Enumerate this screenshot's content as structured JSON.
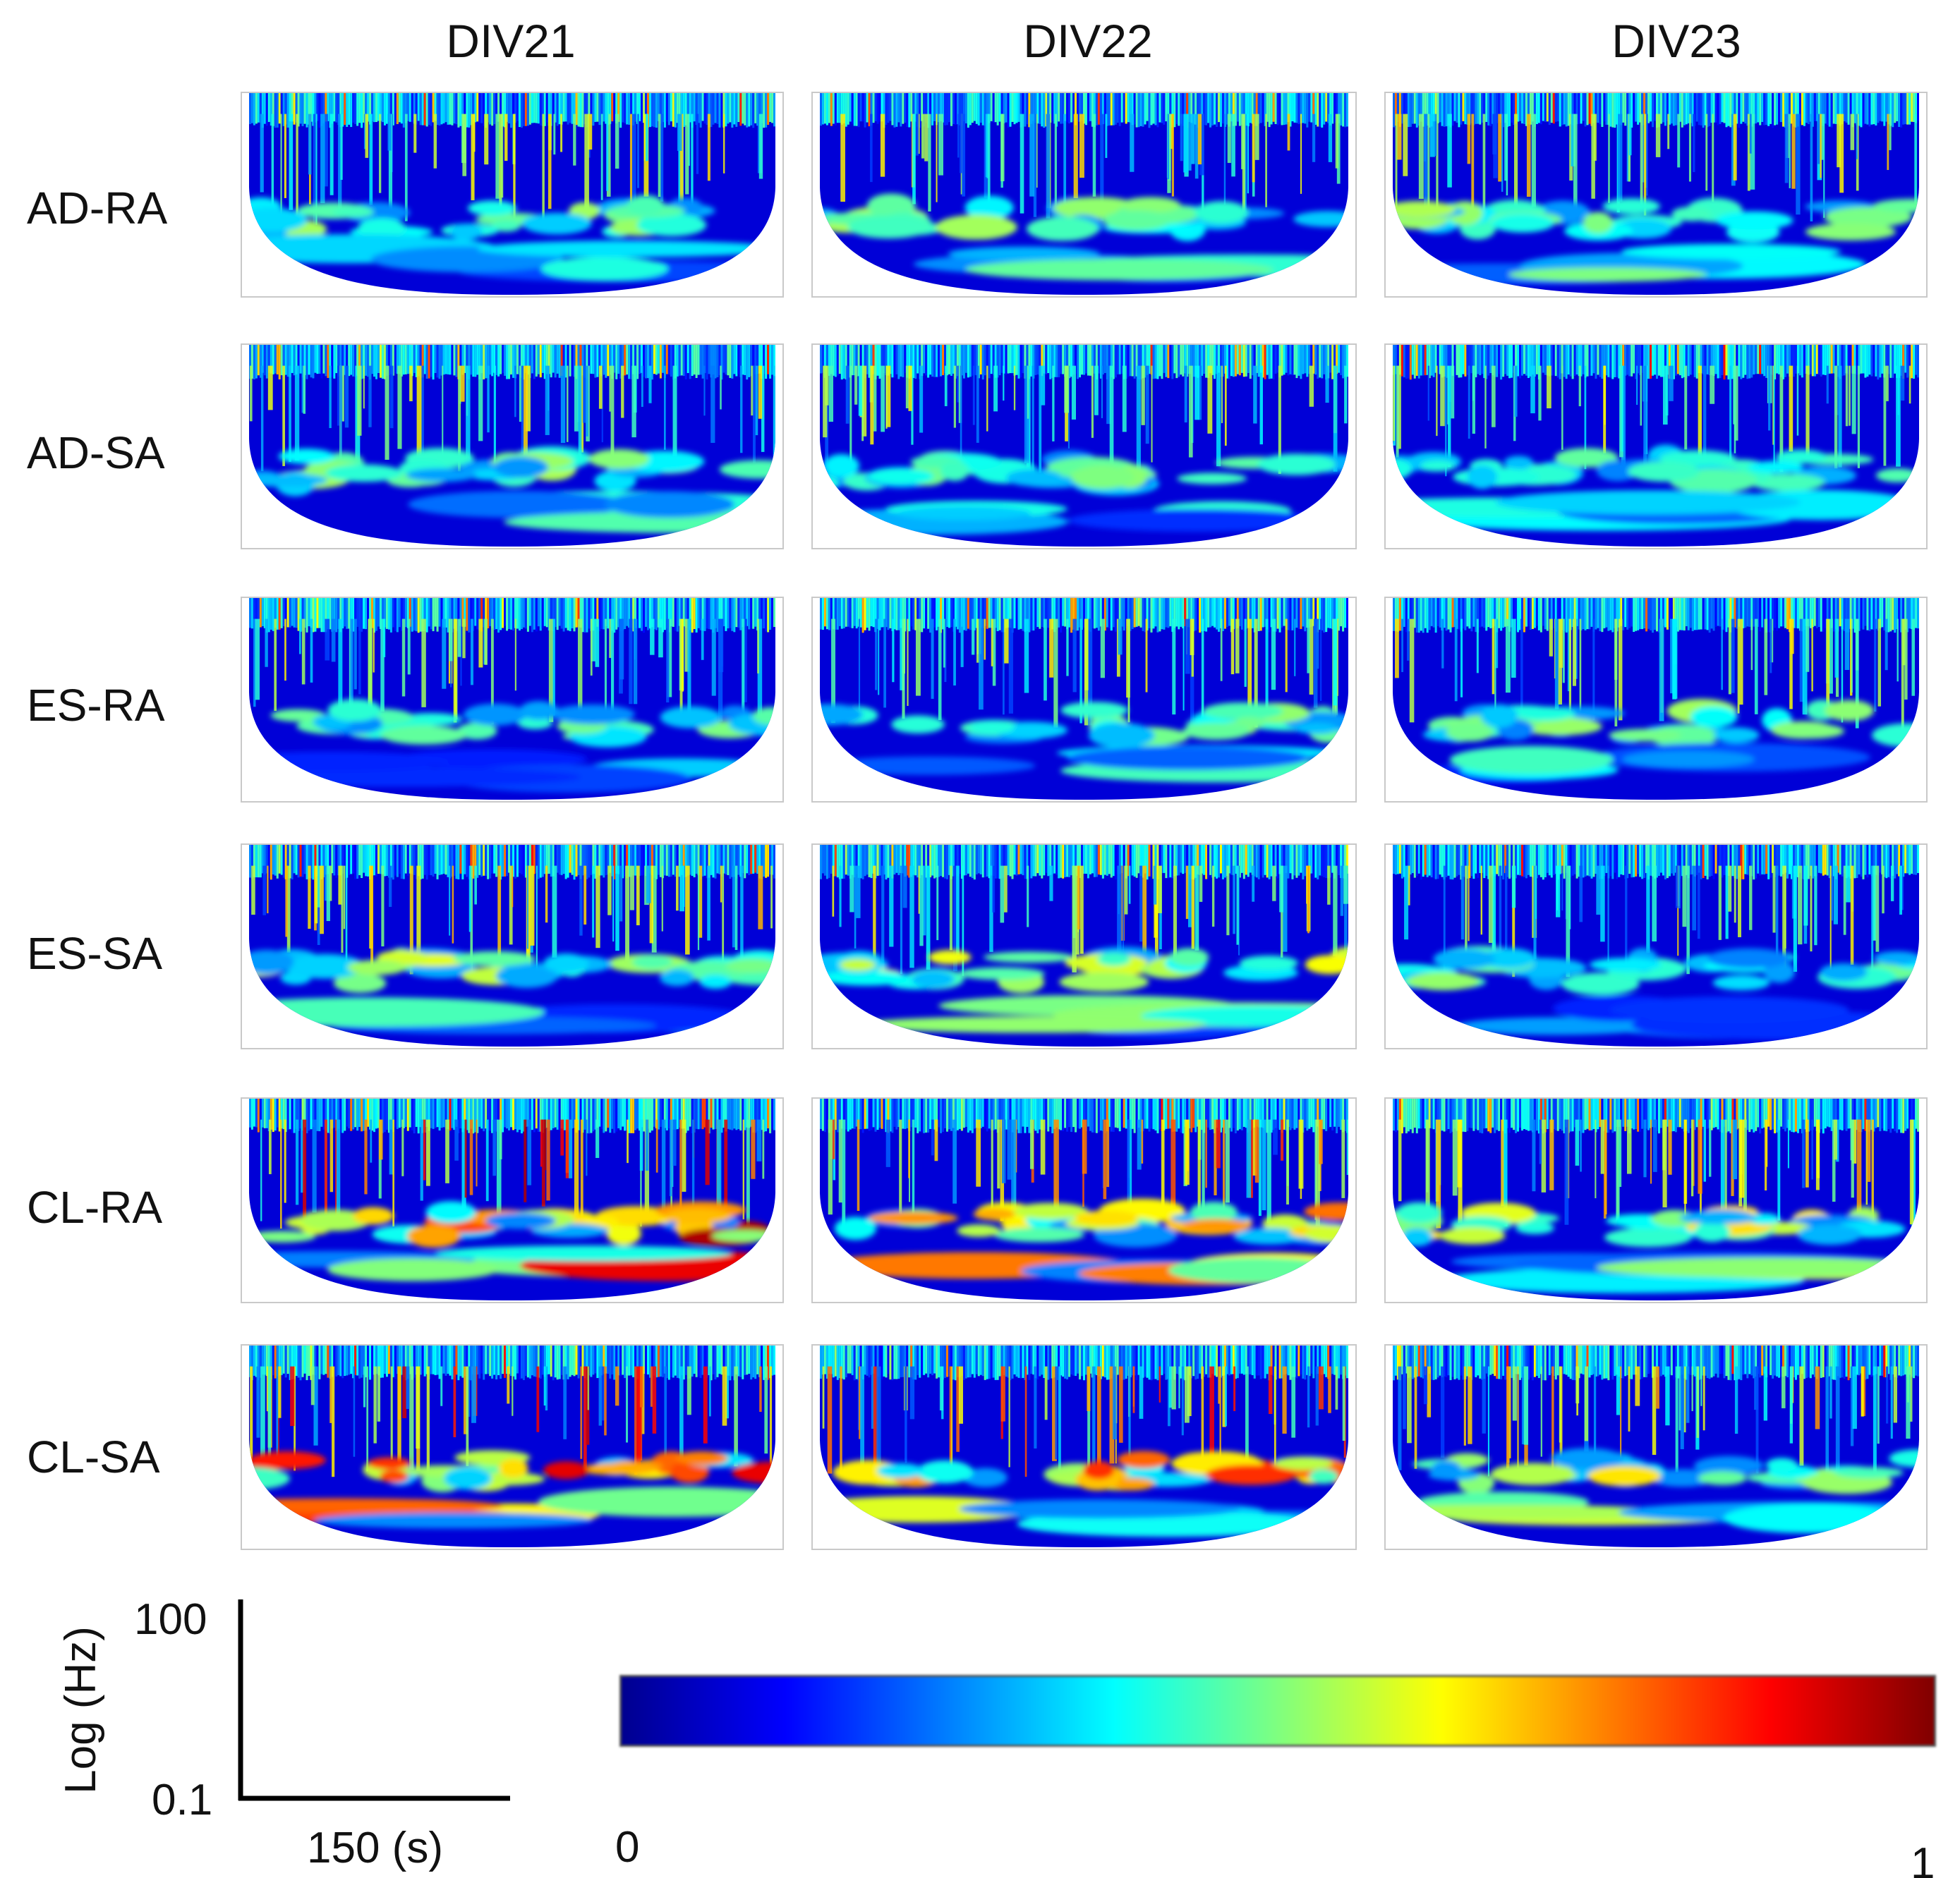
{
  "chart_data": {
    "type": "heatmap",
    "description_kind": "wavelet scalograms, 6 conditions x 3 days",
    "columns": [
      "DIV21",
      "DIV22",
      "DIV23"
    ],
    "rows": [
      "AD-RA",
      "AD-SA",
      "ES-RA",
      "ES-SA",
      "CL-RA",
      "CL-SA"
    ],
    "ylabel": "Log (Hz)",
    "y_ticks": [
      "100",
      "0.1"
    ],
    "ylim": [
      0.1,
      100
    ],
    "y_scale": "log",
    "xlabel": "150 (s)",
    "colorbar": {
      "min_label": "0",
      "max_label": "1",
      "range": [
        0,
        1
      ],
      "colormap": [
        "#00008f",
        "#0000ff",
        "#0080ff",
        "#00ffff",
        "#7fff7f",
        "#ffff00",
        "#ff8000",
        "#ff0000",
        "#800000"
      ]
    },
    "relative_power_level": [
      [
        0.32,
        0.34,
        0.36
      ],
      [
        0.33,
        0.3,
        0.27
      ],
      [
        0.28,
        0.3,
        0.32
      ],
      [
        0.4,
        0.42,
        0.3
      ],
      [
        0.8,
        0.62,
        0.46
      ],
      [
        0.76,
        0.66,
        0.46
      ]
    ]
  }
}
